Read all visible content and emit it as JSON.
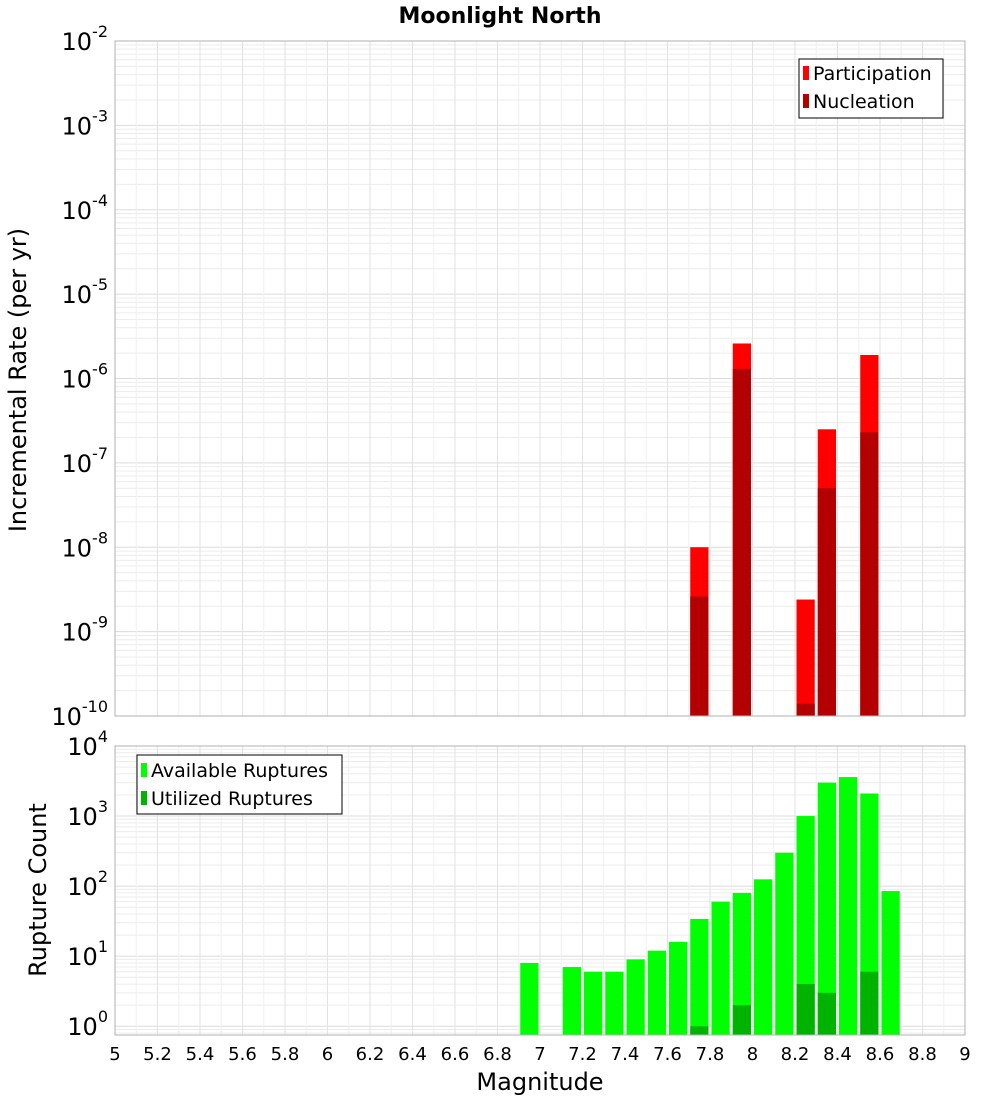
{
  "chart_data": [
    {
      "type": "bar",
      "title": "Moonlight North",
      "xlabel": "",
      "ylabel": "Incremental Rate (per yr)",
      "yscale": "log",
      "ylim": [
        1e-10,
        0.01
      ],
      "xlim": [
        5,
        9
      ],
      "bin_width": 0.1,
      "grid": true,
      "legend_position": "top-right",
      "y_ticks": [
        {
          "base": "10",
          "exp": "-10"
        },
        {
          "base": "10",
          "exp": "-9"
        },
        {
          "base": "10",
          "exp": "-8"
        },
        {
          "base": "10",
          "exp": "-7"
        },
        {
          "base": "10",
          "exp": "-6"
        },
        {
          "base": "10",
          "exp": "-5"
        },
        {
          "base": "10",
          "exp": "-4"
        },
        {
          "base": "10",
          "exp": "-3"
        },
        {
          "base": "10",
          "exp": "-2"
        }
      ],
      "series": [
        {
          "name": "Participation",
          "color": "#ff0000",
          "x": [
            7.75,
            7.95,
            8.25,
            8.35,
            8.55
          ],
          "values": [
            1e-08,
            2.6e-06,
            2.4e-09,
            2.5e-07,
            1.9e-06
          ]
        },
        {
          "name": "Nucleation",
          "color": "#b30000",
          "x": [
            7.75,
            7.95,
            8.25,
            8.35,
            8.55
          ],
          "values": [
            2.6e-09,
            1.3e-06,
            1.4e-10,
            5e-08,
            2.3e-07
          ]
        }
      ]
    },
    {
      "type": "bar",
      "title": "",
      "xlabel": "Magnitude",
      "ylabel": "Rupture Count",
      "yscale": "log",
      "ylim": [
        0.75,
        10000
      ],
      "xlim": [
        5,
        9
      ],
      "bin_width": 0.1,
      "grid": true,
      "legend_position": "top-left",
      "y_ticks": [
        {
          "base": "10",
          "exp": "0"
        },
        {
          "base": "10",
          "exp": "1"
        },
        {
          "base": "10",
          "exp": "2"
        },
        {
          "base": "10",
          "exp": "3"
        },
        {
          "base": "10",
          "exp": "4"
        }
      ],
      "x_ticks": [
        "5",
        "5.2",
        "5.4",
        "5.6",
        "5.8",
        "6",
        "6.2",
        "6.4",
        "6.6",
        "6.8",
        "7",
        "7.2",
        "7.4",
        "7.6",
        "7.8",
        "8",
        "8.2",
        "8.4",
        "8.6",
        "8.8",
        "9"
      ],
      "series": [
        {
          "name": "Available Ruptures",
          "color": "#00ff00",
          "x": [
            6.95,
            7.15,
            7.25,
            7.35,
            7.45,
            7.55,
            7.65,
            7.75,
            7.85,
            7.95,
            8.05,
            8.15,
            8.25,
            8.35,
            8.45,
            8.55,
            8.65
          ],
          "values": [
            8,
            7,
            6,
            6,
            9,
            12,
            16,
            34,
            60,
            80,
            125,
            300,
            1000,
            3000,
            3600,
            2100,
            85
          ]
        },
        {
          "name": "Utilized Ruptures",
          "color": "#00b300",
          "x": [
            7.75,
            7.95,
            8.25,
            8.35,
            8.55
          ],
          "values": [
            1,
            2,
            4,
            3,
            6
          ]
        }
      ]
    }
  ]
}
